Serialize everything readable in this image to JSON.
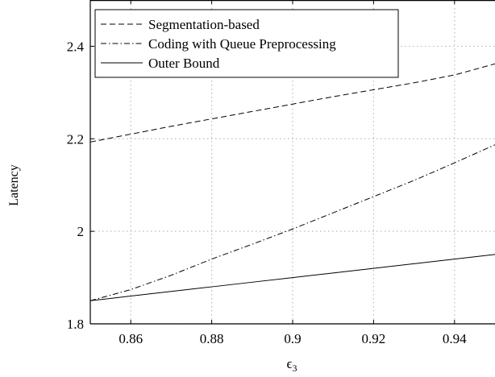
{
  "chart_data": {
    "type": "line",
    "title": "",
    "xlabel": "ϵ",
    "xlabel_subscript": "3",
    "ylabel": "Latency",
    "xlim": [
      0.85,
      0.95
    ],
    "ylim": [
      1.8,
      2.5
    ],
    "xticks": [
      0.86,
      0.88,
      0.9,
      0.92,
      0.94
    ],
    "xtick_labels": [
      "0.86",
      "0.88",
      "0.9",
      "0.92",
      "0.94"
    ],
    "yticks": [
      1.8,
      2.0,
      2.2,
      2.4
    ],
    "ytick_labels": [
      "1.8",
      "2",
      "2.2",
      "2.4"
    ],
    "grid": true,
    "legend_position": "top-left",
    "series": [
      {
        "name": "Segmentation-based",
        "style": "dashed",
        "color": "#000000",
        "x": [
          0.85,
          0.86,
          0.87,
          0.88,
          0.89,
          0.9,
          0.91,
          0.92,
          0.93,
          0.94,
          0.95
        ],
        "y": [
          2.193,
          2.21,
          2.227,
          2.243,
          2.259,
          2.275,
          2.291,
          2.306,
          2.321,
          2.338,
          2.362
        ]
      },
      {
        "name": "Coding with Queue Preprocessing",
        "style": "dashdot",
        "color": "#000000",
        "x": [
          0.85,
          0.86,
          0.87,
          0.88,
          0.89,
          0.9,
          0.91,
          0.92,
          0.93,
          0.94,
          0.95
        ],
        "y": [
          1.85,
          1.874,
          1.905,
          1.94,
          1.972,
          2.005,
          2.04,
          2.075,
          2.11,
          2.148,
          2.187
        ]
      },
      {
        "name": "Outer Bound",
        "style": "solid",
        "color": "#000000",
        "x": [
          0.85,
          0.86,
          0.87,
          0.88,
          0.89,
          0.9,
          0.91,
          0.92,
          0.93,
          0.94,
          0.95
        ],
        "y": [
          1.85,
          1.86,
          1.87,
          1.88,
          1.89,
          1.9,
          1.91,
          1.92,
          1.93,
          1.94,
          1.95
        ]
      }
    ]
  }
}
